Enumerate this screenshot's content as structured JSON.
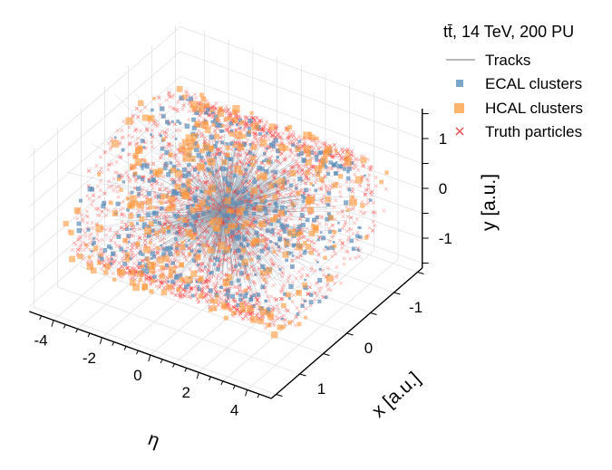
{
  "chart_data": {
    "type": "scatter",
    "subtype": "3d",
    "x_axis": {
      "label": "η",
      "ticks": [
        -4,
        -2,
        0,
        2,
        4
      ],
      "range": [
        -5,
        5
      ]
    },
    "y_axis": {
      "label": "x [a.u.]",
      "ticks": [
        -1,
        0,
        1
      ],
      "range": [
        -1.6,
        1.6
      ]
    },
    "z_axis": {
      "label": "y [a.u.]",
      "ticks": [
        -1,
        0,
        1
      ],
      "range": [
        -1.6,
        1.6
      ]
    },
    "grid": true,
    "legend": {
      "position": "top-right",
      "title": "tt̄, 14 TeV, 200 PU",
      "entries": [
        {
          "label": "Tracks",
          "color": "#a0a0a0",
          "marker": "line"
        },
        {
          "label": "ECAL clusters",
          "color": "#7aa6c8",
          "marker": "square"
        },
        {
          "label": "HCAL clusters",
          "color": "#ffb36b",
          "marker": "square-large"
        },
        {
          "label": "Truth particles",
          "color": "#e34d4d",
          "marker": "x"
        }
      ]
    },
    "series": [
      {
        "name": "Tracks",
        "color": "#8a9ba8",
        "count": 900
      },
      {
        "name": "ECAL clusters",
        "color": "#5b8fb9",
        "count": 550
      },
      {
        "name": "HCAL clusters",
        "color": "#ff9a3c",
        "count": 350
      },
      {
        "name": "Truth particles",
        "color": "#ff2020",
        "count": 3200
      }
    ]
  }
}
